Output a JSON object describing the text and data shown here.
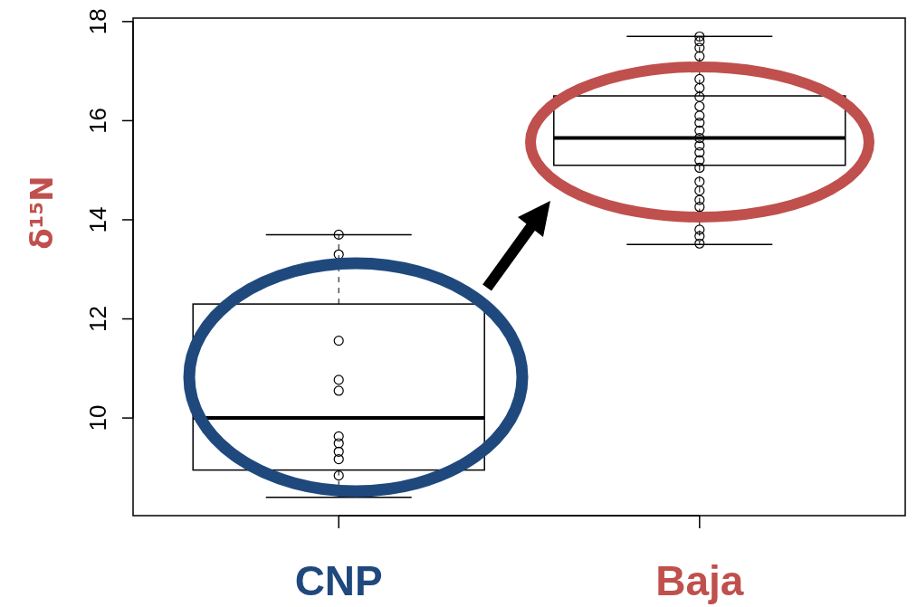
{
  "chart_data": {
    "type": "box",
    "ylabel": "δ¹⁵N",
    "categories": [
      "CNP",
      "Baja"
    ],
    "ylim": [
      8.03,
      18.07
    ],
    "yticks": [
      10,
      12,
      14,
      16,
      18
    ],
    "grid": false,
    "marker": "circle",
    "boxes": [
      {
        "low": 8.4,
        "q1": 8.95,
        "median": 10.0,
        "q3": 12.3,
        "high": 13.7
      },
      {
        "low": 13.5,
        "q1": 15.1,
        "median": 15.65,
        "q3": 16.5,
        "high": 17.7
      }
    ],
    "series": [
      {
        "type": "scatter",
        "color": "#000000",
        "x": [
          "CNP",
          "CNP",
          "CNP",
          "CNP",
          "CNP",
          "CNP",
          "CNP",
          "CNP",
          "CNP",
          "CNP",
          "CNP",
          "CNP"
        ],
        "values": [
          13.7,
          13.3,
          11.56,
          10.77,
          10.55,
          9.63,
          9.49,
          9.32,
          9.17,
          8.84,
          null,
          null
        ]
      },
      {
        "type": "scatter",
        "color": "#000000",
        "x": [
          "Baja",
          "Baja",
          "Baja",
          "Baja",
          "Baja",
          "Baja",
          "Baja",
          "Baja",
          "Baja",
          "Baja",
          "Baja",
          "Baja",
          "Baja",
          "Baja",
          "Baja",
          "Baja",
          "Baja",
          "Baja",
          "Baja",
          "Baja",
          "Baja",
          "Baja",
          "Baja",
          "Baja"
        ],
        "values": [
          17.7,
          17.6,
          17.47,
          17.3,
          null,
          16.84,
          16.66,
          16.48,
          16.29,
          16.1,
          15.96,
          15.8,
          15.65,
          15.5,
          15.36,
          15.2,
          15.05,
          14.77,
          14.59,
          14.4,
          14.26,
          13.8,
          13.67,
          13.52
        ]
      }
    ]
  }
}
